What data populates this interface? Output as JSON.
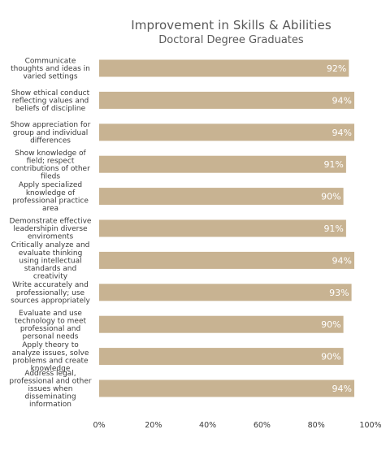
{
  "chart_data": {
    "type": "bar",
    "orientation": "horizontal",
    "title": "Improvement in Skills & Abilities",
    "subtitle": "Doctoral Degree Graduates",
    "categories": [
      [
        "Communicate",
        "thoughts and ideas in",
        "varied settings"
      ],
      [
        "Show ethical conduct",
        "reflecting values and",
        "beliefs of discipline"
      ],
      [
        "Show appreciation for",
        "group and individual",
        "differences"
      ],
      [
        "Show knowledge of",
        "field; respect",
        "contributions of other",
        "fileds"
      ],
      [
        "Apply specialized",
        "knowledge of",
        "professional practice",
        "area"
      ],
      [
        "Demonstrate effective",
        "leadershipin diverse",
        "enviroments"
      ],
      [
        "Critically analyze and",
        "evaluate thinking",
        "using intellectual",
        "standards and",
        "creativity"
      ],
      [
        "Write accurately and",
        "professionally; use",
        "sources appropriately"
      ],
      [
        "Evaluate and use",
        "technology to meet",
        "professional and",
        "personal needs"
      ],
      [
        "Apply theory to",
        "analyze issues, solve",
        "problems and create",
        "knowledge"
      ],
      [
        "Address legal,",
        "professional and other",
        "issues when",
        "disseminating",
        "information"
      ]
    ],
    "values": [
      92,
      94,
      94,
      91,
      90,
      91,
      94,
      93,
      90,
      90,
      94
    ],
    "value_labels": [
      "92%",
      "94%",
      "94%",
      "91%",
      "90%",
      "91%",
      "94%",
      "93%",
      "90%",
      "90%",
      "94%"
    ],
    "xlim": [
      0,
      100
    ],
    "x_ticks": [
      "0%",
      "20%",
      "40%",
      "60%",
      "80%",
      "100%"
    ],
    "grid": false,
    "legend": "none",
    "colors": {
      "bar": "#c8b392",
      "bar_label": "#ffffff",
      "text": "#595959"
    }
  }
}
